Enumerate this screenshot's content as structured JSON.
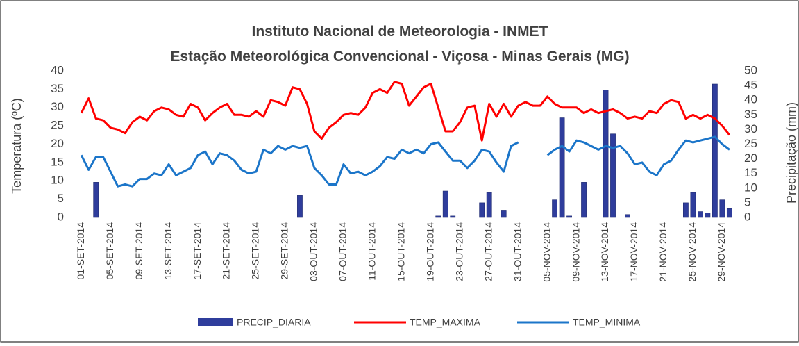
{
  "chart_data": {
    "type": "bar-line",
    "title": "Instituto Nacional de Meteorologia - INMET",
    "subtitle": "Estação Meteorológica Convencional - Viçosa - Minas Gerais (MG)",
    "ylabel": "Temperatura (ºC)",
    "y2label": "Precipitação (mm)",
    "categories": [
      "01-SET-2014",
      null,
      null,
      null,
      "05-SET-2014",
      null,
      null,
      null,
      "09-SET-2014",
      null,
      null,
      null,
      "13-SET-2014",
      null,
      null,
      null,
      "17-SET-2014",
      null,
      null,
      null,
      "21-SET-2014",
      null,
      null,
      null,
      "25-SET-2014",
      null,
      null,
      null,
      "29-SET-2014",
      null,
      null,
      null,
      "03-OUT-2014",
      null,
      null,
      null,
      "07-OUT-2014",
      null,
      null,
      null,
      "11-OUT-2014",
      null,
      null,
      null,
      "15-OUT-2014",
      null,
      null,
      null,
      "19-OUT-2014",
      null,
      null,
      null,
      "23-OUT-2014",
      null,
      null,
      null,
      "27-OUT-2014",
      null,
      null,
      null,
      "31-OUT-2014",
      null,
      null,
      null,
      "05-NOV-2014",
      null,
      null,
      null,
      "09-NOV-2014",
      null,
      null,
      null,
      "13-NOV-2014",
      null,
      null,
      null,
      "17-NOV-2014",
      null,
      null,
      null,
      "21-NOV-2014",
      null,
      null,
      null,
      "25-NOV-2014",
      null,
      null,
      null,
      "29-NOV-2014",
      null
    ],
    "series": [
      {
        "name": "PRECIP_DIARIA",
        "kind": "bar",
        "axis": "y2",
        "color": "#2f3d9c",
        "values": [
          0,
          0,
          12,
          0,
          0,
          0,
          0,
          0,
          0,
          0,
          0,
          0,
          0,
          0,
          0,
          0,
          0,
          0,
          0,
          0,
          0,
          0,
          0,
          0,
          0,
          0,
          0,
          0,
          0,
          0,
          7.5,
          0,
          0,
          0,
          0,
          0,
          0,
          0,
          0,
          0,
          0,
          0,
          0,
          0,
          0,
          0,
          0,
          0,
          0,
          0.5,
          9,
          0.5,
          0,
          0,
          0,
          5,
          8.5,
          0,
          2.5,
          0,
          0,
          0,
          0,
          0,
          0,
          6,
          34,
          0.5,
          0,
          12,
          0,
          0,
          43.5,
          28.5,
          0,
          1,
          0,
          0,
          0,
          0,
          0,
          0,
          0,
          5,
          8.5,
          2,
          1.5,
          45.5,
          6,
          3
        ]
      },
      {
        "name": "TEMP_MAXIMA",
        "kind": "line",
        "color": "#ff0000",
        "values": [
          28.5,
          32.5,
          27,
          26.5,
          24.5,
          24,
          23,
          26,
          27.5,
          26.5,
          29,
          30,
          29.5,
          28,
          27.5,
          31,
          30,
          26.5,
          28.5,
          30,
          31,
          28,
          28,
          27.5,
          29,
          27.5,
          32,
          31.5,
          30.5,
          35.5,
          35,
          31,
          23.5,
          21.5,
          24.5,
          26,
          28,
          28.5,
          28,
          30,
          34,
          35,
          34,
          37,
          36.5,
          30.5,
          33,
          35.5,
          36.5,
          30,
          23.5,
          23.5,
          26,
          30,
          30.5,
          21,
          31,
          27.5,
          31,
          27.5,
          30.5,
          31.5,
          30.5,
          30.5,
          33,
          31,
          30,
          30,
          30,
          28.5,
          29.5,
          28.5,
          29,
          29.5,
          28.5,
          27,
          27.5,
          27,
          29,
          28.5,
          31,
          32,
          31.5,
          27,
          28,
          27,
          28,
          27,
          25,
          22.5
        ]
      },
      {
        "name": "TEMP_MINIMA",
        "kind": "line",
        "color": "#1b75c9",
        "values": [
          17,
          13,
          16.5,
          16.5,
          12.5,
          8.5,
          9,
          8.5,
          10.5,
          10.5,
          12,
          11.5,
          14.5,
          11.5,
          12.5,
          13.5,
          17,
          18,
          14.5,
          17.5,
          17,
          15.5,
          13,
          12,
          12.5,
          18.5,
          17.5,
          19.5,
          18.5,
          19.5,
          19,
          19.5,
          13.5,
          11.5,
          9,
          9,
          14.5,
          12,
          12.5,
          11.5,
          12.5,
          14,
          16.5,
          16,
          18.5,
          17.5,
          18.5,
          17.5,
          20,
          20.5,
          18,
          15.5,
          15.5,
          13.5,
          15.5,
          18.5,
          18,
          15,
          12.5,
          19.5,
          20.5,
          null,
          null,
          null,
          17,
          18.5,
          19.5,
          18,
          21,
          20.5,
          19.5,
          18.5,
          19.5,
          19,
          19.5,
          17.5,
          14.5,
          15,
          12.5,
          11.5,
          14.5,
          15.5,
          18.5,
          21,
          20.5,
          21,
          21.5,
          22,
          20,
          18.5
        ]
      }
    ],
    "ylim": [
      0,
      40
    ],
    "yticks": [
      0,
      5,
      10,
      15,
      20,
      25,
      30,
      35,
      40
    ],
    "y2lim": [
      0,
      50
    ],
    "y2ticks": [
      0,
      5,
      10,
      15,
      20,
      25,
      30,
      35,
      40,
      45,
      50
    ],
    "legend": "bottom"
  }
}
